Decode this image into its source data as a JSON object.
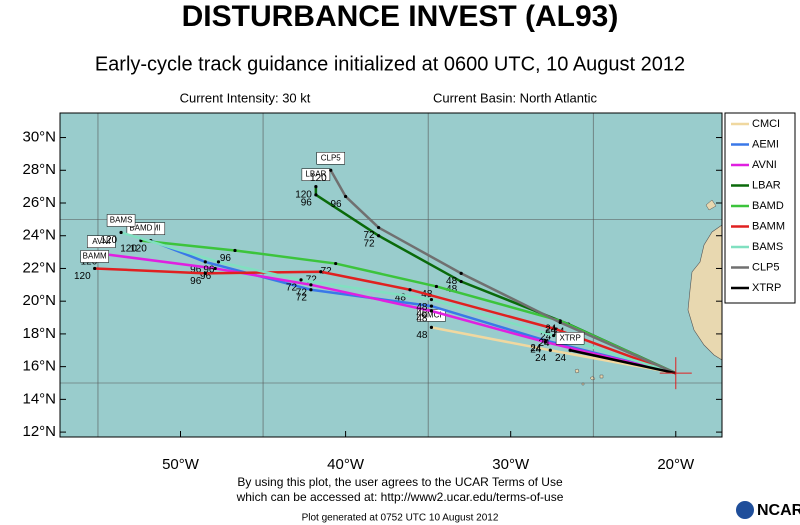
{
  "chart_data": {
    "type": "line",
    "title": "DISTURBANCE INVEST (AL93)",
    "subtitle": "Early-cycle track guidance initialized at 0600 UTC, 10 August 2012",
    "intensity": "Current Intensity: 30 kt",
    "basin": "Current Basin: North Atlantic",
    "xlim": [
      -57.3,
      -17.2
    ],
    "ylim": [
      11.7,
      31.5
    ],
    "xticks": [
      {
        "value": -50,
        "label": "50°W"
      },
      {
        "value": -40,
        "label": "40°W"
      },
      {
        "value": -30,
        "label": "30°W"
      },
      {
        "value": -20,
        "label": "20°W"
      }
    ],
    "yticks": [
      {
        "value": 12,
        "label": "12°N"
      },
      {
        "value": 14,
        "label": "14°N"
      },
      {
        "value": 16,
        "label": "16°N"
      },
      {
        "value": 18,
        "label": "18°N"
      },
      {
        "value": 20,
        "label": "20°N"
      },
      {
        "value": 22,
        "label": "22°N"
      },
      {
        "value": 24,
        "label": "24°N"
      },
      {
        "value": 26,
        "label": "26°N"
      },
      {
        "value": 28,
        "label": "28°N"
      },
      {
        "value": 30,
        "label": "30°N"
      }
    ],
    "xgrid": [
      -55,
      -45,
      -35,
      -25
    ],
    "ygrid": [
      15,
      25
    ],
    "series": [
      {
        "name": "CMCI",
        "color": "#f0d8a0",
        "x": [
          -20,
          -27.6,
          -34.8
        ],
        "y": [
          15.6,
          17.0,
          18.4
        ],
        "hours": [
          null,
          24,
          48
        ]
      },
      {
        "name": "AEMI",
        "color": "#3a78e8",
        "x": [
          -20,
          -27.9,
          -34.8,
          -42.1,
          -48.5,
          -51.8
        ],
        "y": [
          15.6,
          17.6,
          19.7,
          20.7,
          22.4,
          23.7
        ],
        "hours": [
          null,
          24,
          48,
          72,
          96,
          120
        ]
      },
      {
        "name": "AVNI",
        "color": "#e020e0",
        "x": [
          -20,
          -27.9,
          -34.8,
          -42.1,
          -47.9,
          -54.8
        ],
        "y": [
          15.6,
          17.5,
          19.4,
          21.0,
          22.0,
          22.9
        ],
        "hours": [
          null,
          24,
          48,
          72,
          96,
          120
        ]
      },
      {
        "name": "LBAR",
        "color": "#0a6a0a",
        "x": [
          -20,
          -26.5,
          -33.0,
          -38.0,
          -41.8,
          -41.8
        ],
        "y": [
          15.6,
          18.6,
          21.2,
          24.0,
          26.5,
          27.0
        ],
        "hours": [
          null,
          24,
          48,
          72,
          96,
          120
        ]
      },
      {
        "name": "BAMD",
        "color": "#3cc43c",
        "x": [
          -20,
          -27.0,
          -34.5,
          -40.6,
          -46.7,
          -52.4
        ],
        "y": [
          15.6,
          18.8,
          20.9,
          22.3,
          23.1,
          23.7
        ],
        "hours": [
          null,
          24,
          48,
          72,
          96,
          120
        ]
      },
      {
        "name": "BAMM",
        "color": "#e02020",
        "x": [
          -20,
          -27.3,
          -36.1,
          -41.5,
          -48.5,
          -55.2
        ],
        "y": [
          15.6,
          18.3,
          20.7,
          21.8,
          21.7,
          22.0
        ],
        "hours": [
          null,
          24,
          48,
          72,
          96,
          120
        ]
      },
      {
        "name": "BAMS",
        "color": "#80e0c0",
        "x": [
          -20,
          -27.4,
          -34.8,
          -42.7,
          -47.7,
          -53.6
        ],
        "y": [
          15.6,
          17.9,
          20.1,
          21.3,
          22.4,
          24.2
        ],
        "hours": [
          null,
          24,
          48,
          72,
          96,
          120
        ]
      },
      {
        "name": "CLP5",
        "color": "#707070",
        "x": [
          -20,
          -27.0,
          -33.0,
          -38.0,
          -40.0,
          -40.9
        ],
        "y": [
          15.6,
          18.7,
          21.7,
          24.5,
          26.4,
          28.0
        ],
        "hours": [
          null,
          24,
          48,
          72,
          96,
          120
        ]
      },
      {
        "name": "XTRP",
        "color": "#000000",
        "x": [
          -20,
          -26.4
        ],
        "y": [
          15.6,
          17.0
        ],
        "hours": [
          null,
          24
        ]
      }
    ],
    "disclaimer": [
      "By using this plot, the user agrees to the UCAR Terms of Use",
      "which can be accessed at: http://www2.ucar.edu/terms-of-use"
    ],
    "generated": "Plot generated at 0752 UTC   10 August 2012",
    "logo": "NCAR"
  }
}
